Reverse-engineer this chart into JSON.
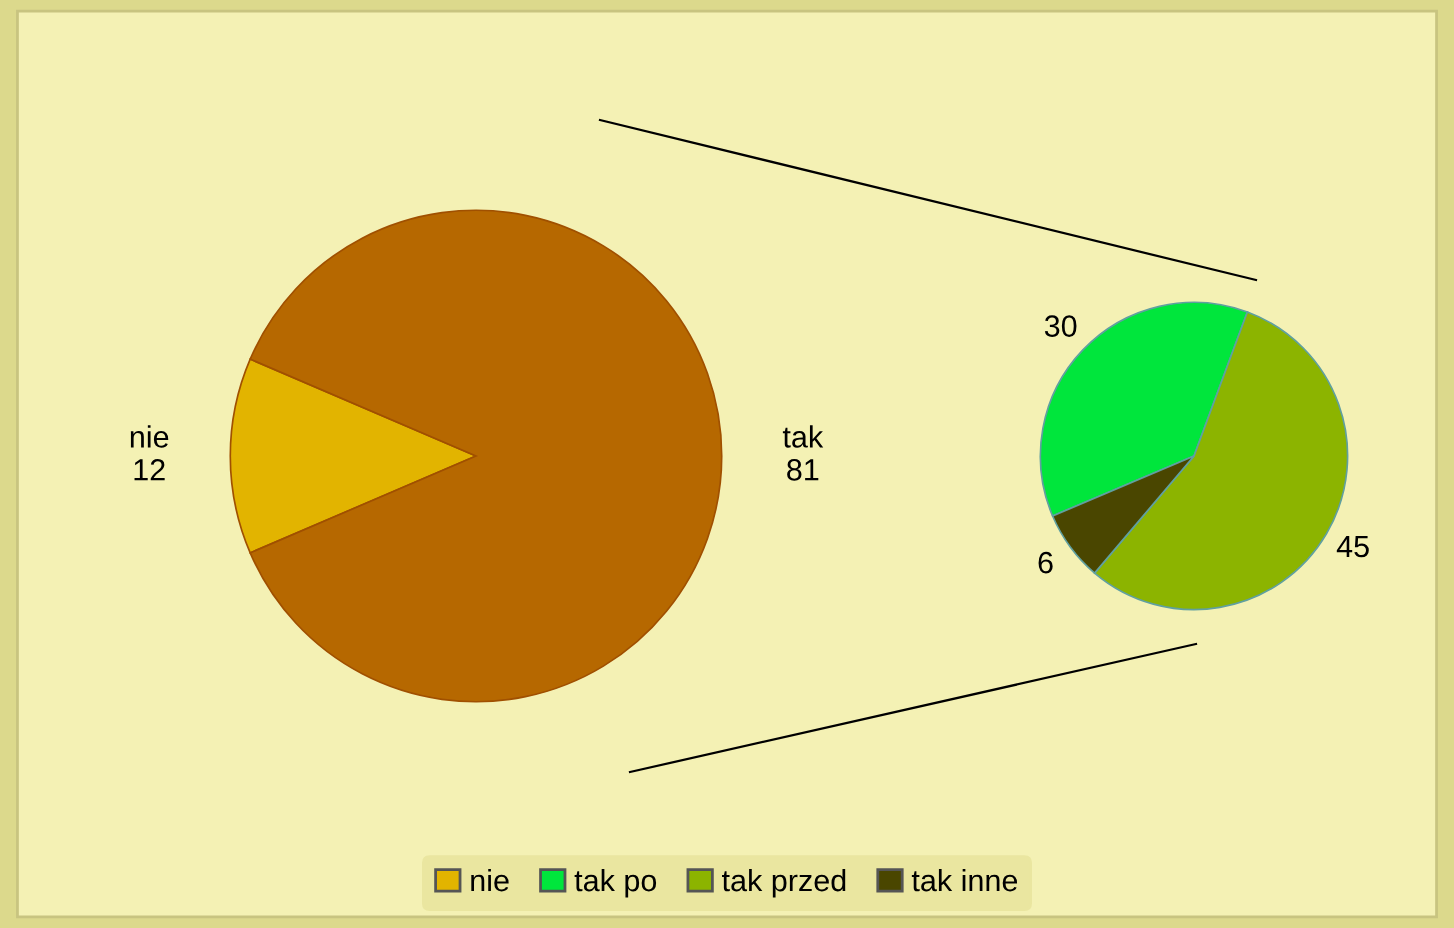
{
  "chart_data": [
    {
      "type": "pie",
      "categories": [
        "nie",
        "tak"
      ],
      "values": [
        12,
        81
      ],
      "colors": [
        "#e2b400",
        "#b66800"
      ],
      "data_labels": true,
      "legend": "bottom"
    },
    {
      "type": "pie",
      "categories": [
        "tak po",
        "tak przed",
        "tak inne"
      ],
      "values": [
        30,
        45,
        6
      ],
      "colors": [
        "#00e63c",
        "#8cb400",
        "#4a4600"
      ],
      "data_labels": true,
      "legend": "bottom"
    }
  ]
}
